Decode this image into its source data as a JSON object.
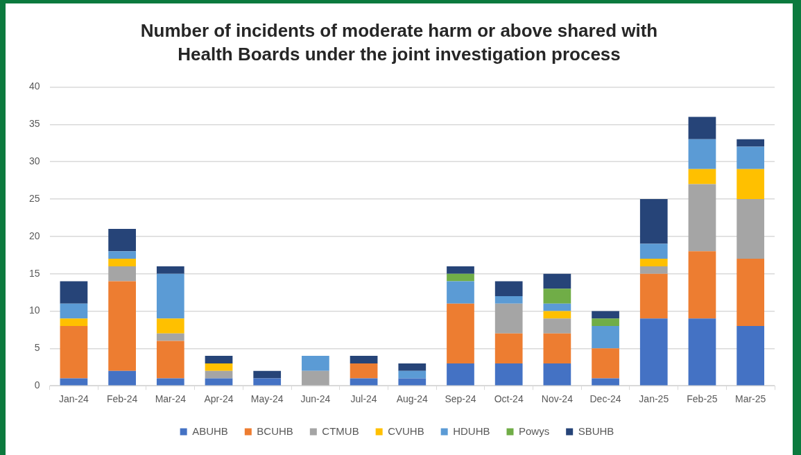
{
  "chart_data": {
    "type": "bar",
    "title": "Number of incidents of moderate harm or above shared with Health Boards under the joint investigation process",
    "categories": [
      "Jan-24",
      "Feb-24",
      "Mar-24",
      "Apr-24",
      "May-24",
      "Jun-24",
      "Jul-24",
      "Aug-24",
      "Sep-24",
      "Oct-24",
      "Nov-24",
      "Dec-24",
      "Jan-25",
      "Feb-25",
      "Mar-25"
    ],
    "stacked": true,
    "series": [
      {
        "name": "ABUHB",
        "color": "#4472c4",
        "values": [
          1,
          2,
          1,
          1,
          1,
          null,
          1,
          1,
          3,
          3,
          3,
          1,
          9,
          9,
          8
        ]
      },
      {
        "name": "BCUHB",
        "color": "#ed7d31",
        "values": [
          7,
          12,
          5,
          null,
          null,
          null,
          2,
          null,
          8,
          4,
          4,
          4,
          6,
          9,
          9
        ]
      },
      {
        "name": "CTMUB",
        "color": "#a5a5a5",
        "values": [
          null,
          2,
          1,
          1,
          null,
          2,
          null,
          null,
          null,
          4,
          2,
          null,
          1,
          9,
          8
        ]
      },
      {
        "name": "CVUHB",
        "color": "#ffc000",
        "values": [
          1,
          1,
          2,
          1,
          null,
          null,
          null,
          null,
          null,
          null,
          1,
          null,
          1,
          2,
          4
        ]
      },
      {
        "name": "HDUHB",
        "color": "#5b9bd5",
        "values": [
          2,
          1,
          6,
          null,
          null,
          2,
          null,
          1,
          3,
          1,
          1,
          3,
          2,
          4,
          3
        ]
      },
      {
        "name": "Powys",
        "color": "#70ad47",
        "values": [
          null,
          null,
          null,
          null,
          null,
          null,
          null,
          null,
          1,
          null,
          2,
          1,
          null,
          null,
          null
        ]
      },
      {
        "name": "SBUHB",
        "color": "#264478",
        "values": [
          3,
          3,
          1,
          1,
          1,
          null,
          1,
          1,
          1,
          2,
          2,
          1,
          6,
          3,
          1
        ]
      }
    ],
    "ylim": [
      0,
      40
    ],
    "yticks": [
      0,
      5,
      10,
      15,
      20,
      25,
      30,
      35,
      40
    ],
    "grid": "y",
    "legend": "bottom"
  }
}
